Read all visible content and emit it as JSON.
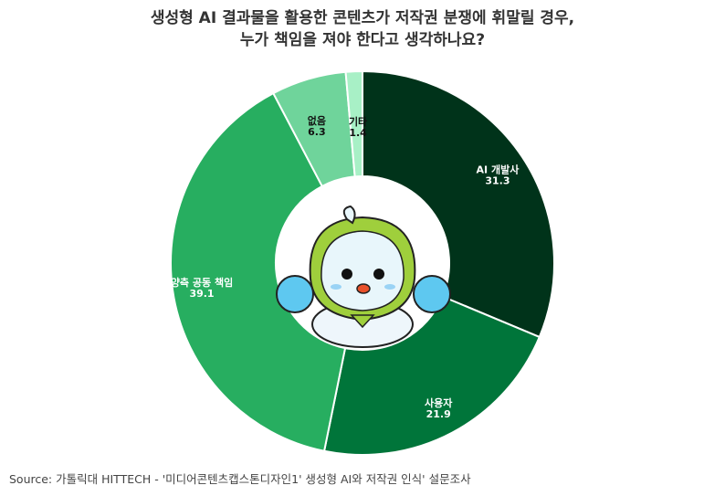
{
  "chart_data": {
    "type": "pie",
    "variant": "donut",
    "title_line1": "생성형 AI 결과물을 활용한 콘텐츠가 저작권 분쟁에 휘말릴 경우,",
    "title_line2": "누가 책임을 져야 한다고 생각하나요?",
    "categories": [
      "AI 개발사",
      "사용자",
      "양측 공동 책임",
      "없음",
      "기타"
    ],
    "values": [
      31.3,
      21.9,
      39.1,
      6.3,
      1.4
    ],
    "value_labels": [
      "31.3",
      "21.9",
      "39.1",
      "6.3",
      "1.4"
    ],
    "colors": [
      "#00331a",
      "#00753a",
      "#27ae60",
      "#6fd49b",
      "#a8f0c6"
    ],
    "label_colors": [
      "#ffffff",
      "#ffffff",
      "#ffffff",
      "#111111",
      "#111111"
    ],
    "start": "top",
    "direction": "clockwise",
    "center_image": "mascot"
  },
  "source": "Source: 가톨릭대 HITTECH - '미디어콘텐츠캡스톤디자인1' 생성형 AI와 저작권 인식' 설문조사"
}
